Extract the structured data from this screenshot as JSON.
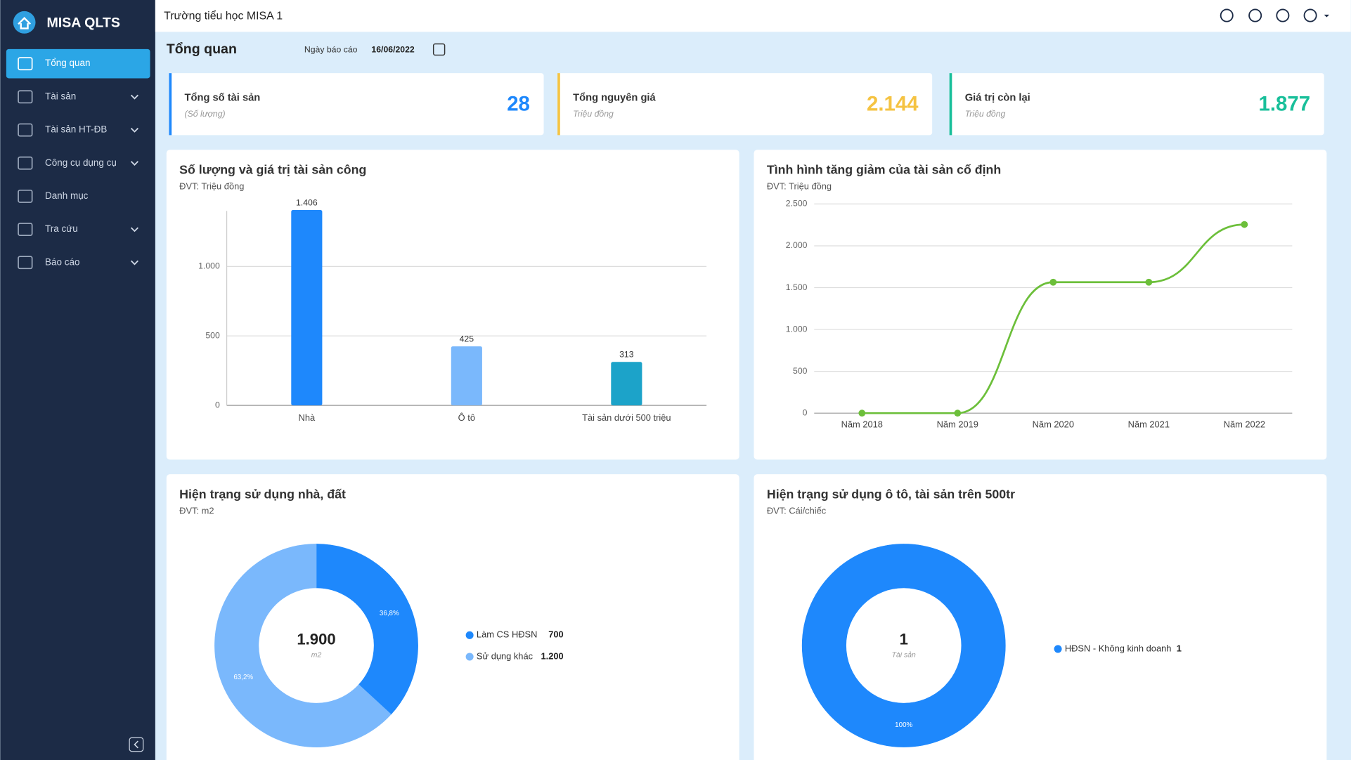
{
  "sidebar": {
    "app_name": "MISA QLTS",
    "active": 0,
    "menu": [
      {
        "label": "Tổng quan",
        "expandable": false
      },
      {
        "label": "Tài sản",
        "expandable": true
      },
      {
        "label": "Tài sản HT-ĐB",
        "expandable": true
      },
      {
        "label": "Công cụ dụng cụ",
        "expandable": true
      },
      {
        "label": "Danh mục",
        "expandable": false
      },
      {
        "label": "Tra cứu",
        "expandable": true
      },
      {
        "label": "Báo cáo",
        "expandable": true
      }
    ]
  },
  "header": {
    "school": "Trường tiểu học MISA 1"
  },
  "page": {
    "title": "Tổng quan",
    "report_date_label": "Ngày báo cáo",
    "report_date": "16/06/2022"
  },
  "cards": [
    {
      "label": "Tổng số tài sản",
      "unit": "(Số lượng)",
      "value": "28",
      "color": "#1e88fc"
    },
    {
      "label": "Tổng nguyên giá",
      "unit": "Triệu đồng",
      "value": "2.144",
      "color": "#f5c342"
    },
    {
      "label": "Giá trị còn lại",
      "unit": "Triệu đồng",
      "value": "1.877",
      "color": "#19bf9a"
    }
  ],
  "chart_data": [
    {
      "type": "bar",
      "title": "Số lượng và giá trị tài sản công",
      "subtitle": "ĐVT: Triệu đồng",
      "categories": [
        "Nhà",
        "Ô tô",
        "Tài sản dưới 500 triệu"
      ],
      "values": [
        1406,
        425,
        313
      ],
      "value_labels": [
        "1.406",
        "425",
        "313"
      ],
      "colors": [
        "#1e88fc",
        "#7ab8fc",
        "#1ca3c9"
      ],
      "ylim": [
        0,
        1400
      ],
      "yticks": [
        0,
        500,
        {
          "value": 1000,
          "label": "1.000"
        }
      ],
      "grid": true
    },
    {
      "type": "line",
      "title": "Tình hình tăng giảm của tài sản cố định",
      "subtitle": "ĐVT: Triệu đồng",
      "categories": [
        "Năm 2018",
        "Năm 2019",
        "Năm 2020",
        "Năm 2021",
        "Năm 2022"
      ],
      "values": [
        0,
        0,
        1565,
        1565,
        2255
      ],
      "color": "#6cbf3a",
      "ylim": [
        0,
        2500
      ],
      "yticks": [
        0,
        500,
        {
          "value": 1000,
          "label": "1.000"
        },
        {
          "value": 1500,
          "label": "1.500"
        },
        {
          "value": 2000,
          "label": "2.000"
        },
        {
          "value": 2500,
          "label": "2.500"
        }
      ],
      "grid": true
    },
    {
      "type": "pie",
      "title": "Hiện trạng sử dụng nhà, đất",
      "subtitle": "ĐVT: m2",
      "categories": [
        "Làm CS HĐSN",
        "Sử dụng khác"
      ],
      "values": [
        700,
        1200
      ],
      "value_labels": [
        "700",
        "1.200"
      ],
      "percent_labels": [
        "36,8%",
        "63,2%"
      ],
      "colors": [
        "#1e88fc",
        "#7ab8fc"
      ],
      "center_value": "1.900",
      "center_unit": "m2"
    },
    {
      "type": "pie",
      "title": "Hiện trạng sử dụng ô tô, tài sản trên 500tr",
      "subtitle": "ĐVT: Cái/chiếc",
      "categories": [
        "HĐSN - Không kinh doanh"
      ],
      "values": [
        1
      ],
      "value_labels": [
        "1"
      ],
      "percent_labels": [
        "100%"
      ],
      "colors": [
        "#1e88fc"
      ],
      "center_value": "1",
      "center_unit": "Tài sản"
    }
  ]
}
